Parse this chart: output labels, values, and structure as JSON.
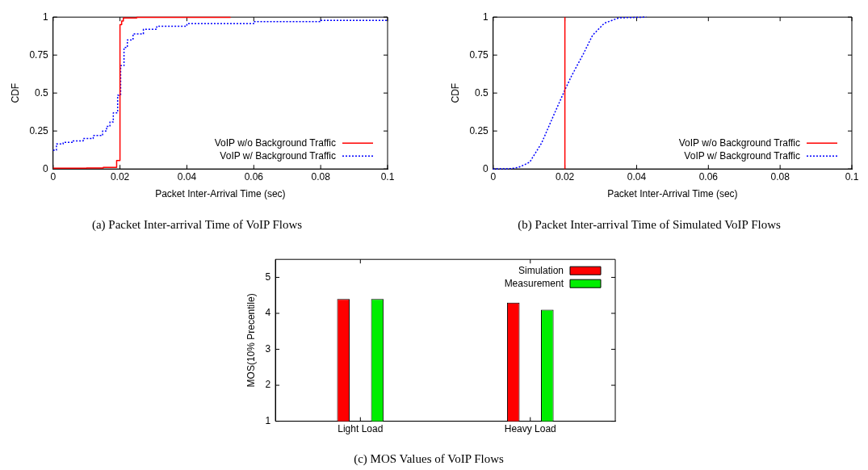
{
  "chart_data": [
    {
      "type": "step",
      "title": "(a) Packet Inter-arrival Time of VoIP Flows",
      "xlabel": "Packet Inter-Arrival Time (sec)",
      "ylabel": "CDF",
      "xlim": [
        0,
        0.1
      ],
      "xticks": [
        0,
        0.02,
        0.04,
        0.06,
        0.08,
        0.1
      ],
      "ylim": [
        0,
        1
      ],
      "yticks": [
        0,
        0.25,
        0.5,
        0.75,
        1
      ],
      "grid": false,
      "legend": "bottom right",
      "series": [
        {
          "name": "VoIP w/o Background Traffic",
          "color": "#ff0000",
          "line_style": "solid",
          "x": [
            0,
            0.01,
            0.015,
            0.019,
            0.02,
            0.0205,
            0.021,
            0.025,
            0.053
          ],
          "values": [
            0.005,
            0.007,
            0.01,
            0.055,
            0.95,
            0.975,
            0.995,
            0.998,
            1
          ]
        },
        {
          "name": "VoIP w/ Background Traffic",
          "color": "#0000ff",
          "line_style": "dotted",
          "x": [
            0,
            0.001,
            0.003,
            0.006,
            0.009,
            0.012,
            0.0148,
            0.016,
            0.017,
            0.018,
            0.0193,
            0.0202,
            0.0212,
            0.0222,
            0.0239,
            0.027,
            0.031,
            0.04,
            0.06,
            0.08,
            0.1
          ],
          "values": [
            0.123,
            0.165,
            0.175,
            0.185,
            0.2,
            0.22,
            0.25,
            0.28,
            0.31,
            0.37,
            0.485,
            0.68,
            0.8,
            0.85,
            0.89,
            0.92,
            0.94,
            0.957,
            0.97,
            0.978,
            0.983
          ]
        }
      ]
    },
    {
      "type": "line",
      "title": "(b) Packet Inter-arrival Time of Simulated VoIP Flows",
      "xlabel": "Packet Inter-Arrival Time (sec)",
      "ylabel": "CDF",
      "xlim": [
        0,
        0.1
      ],
      "xticks": [
        0,
        0.02,
        0.04,
        0.06,
        0.08,
        0.1
      ],
      "ylim": [
        0,
        1
      ],
      "yticks": [
        0,
        0.25,
        0.5,
        0.75,
        1
      ],
      "grid": false,
      "legend": "bottom right",
      "series": [
        {
          "name": "VoIP w/o Background Traffic",
          "color": "#ff0000",
          "line_style": "solid",
          "x": [
            0.02,
            0.02
          ],
          "values": [
            0,
            1
          ]
        },
        {
          "name": "VoIP w/ Background Traffic",
          "color": "#0000ff",
          "line_style": "dotted",
          "x": [
            0,
            0.005,
            0.007,
            0.0085,
            0.0102,
            0.0135,
            0.0168,
            0.02,
            0.0218,
            0.0252,
            0.0277,
            0.031,
            0.035,
            0.0427
          ],
          "values": [
            0,
            0.002,
            0.01,
            0.025,
            0.045,
            0.17,
            0.35,
            0.52,
            0.61,
            0.76,
            0.88,
            0.96,
            0.995,
            1
          ]
        }
      ]
    },
    {
      "type": "bar",
      "title": "(c) MOS Values of VoIP Flows",
      "ylabel": "MOS(10% Precentile)",
      "categories": [
        "Light Load",
        "Heavy Load"
      ],
      "ylim": [
        1,
        5.5
      ],
      "yticks": [
        1,
        2,
        3,
        4,
        5
      ],
      "grid": false,
      "legend": "top right",
      "series": [
        {
          "name": "Simulation",
          "color": "#ff0000",
          "values": [
            4.4,
            4.3
          ]
        },
        {
          "name": "Measurement",
          "color": "#00ee00",
          "values": [
            4.4,
            4.1
          ]
        }
      ]
    }
  ]
}
